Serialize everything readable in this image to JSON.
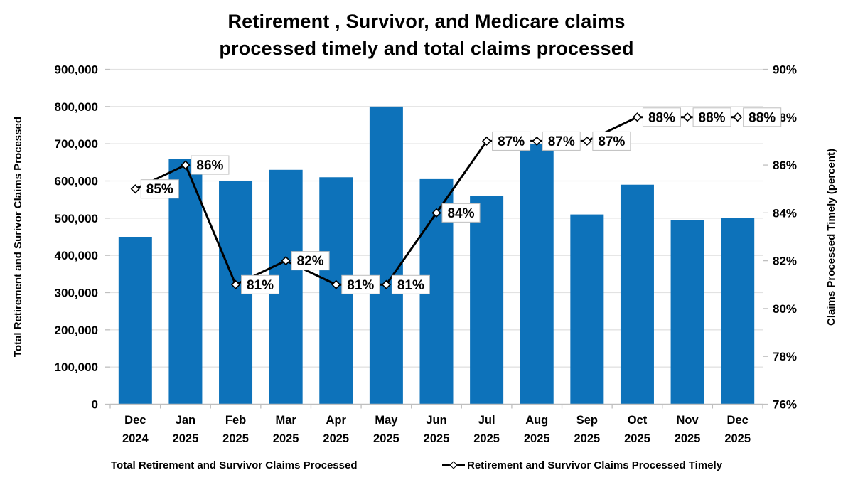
{
  "title": {
    "line1": "Retirement , Survivor, and Medicare claims",
    "line2": "processed timely and total claims processed"
  },
  "colors": {
    "bar": "#0D72BA",
    "line": "#000000",
    "grid": "#E2E2E2",
    "axis": "#BFBFBF",
    "label_box_border": "#BFBFBF",
    "label_box_fill": "#FFFFFF",
    "text": "#000000"
  },
  "chart_data": {
    "type": "combo-bar-line",
    "categories_line1": [
      "Dec",
      "Jan",
      "Feb",
      "Mar",
      "Apr",
      "May",
      "Jun",
      "Jul",
      "Aug",
      "Sep",
      "Oct",
      "Nov",
      "Dec"
    ],
    "categories_line2": [
      "2024",
      "2025",
      "2025",
      "2025",
      "2025",
      "2025",
      "2025",
      "2025",
      "2025",
      "2025",
      "2025",
      "2025",
      "2025"
    ],
    "series": [
      {
        "name": "Total Retirement and Survivor Claims Processed",
        "type": "bar",
        "axis": "left",
        "values": [
          450000,
          660000,
          600000,
          630000,
          610000,
          800000,
          605000,
          560000,
          700000,
          510000,
          590000,
          495000,
          500000
        ]
      },
      {
        "name": "Retirement and Survivor Claims Processed Timely",
        "type": "line",
        "axis": "right",
        "values": [
          85,
          86,
          81,
          82,
          81,
          81,
          84,
          87,
          87,
          87,
          88,
          88,
          88
        ],
        "data_labels": [
          "85%",
          "86%",
          "81%",
          "82%",
          "81%",
          "81%",
          "84%",
          "87%",
          "87%",
          "87%",
          "88%",
          "88%",
          "88%"
        ]
      }
    ],
    "left_axis": {
      "title": "Total Retirement and Surivor Claims Processed",
      "min": 0,
      "max": 900000,
      "step": 100000,
      "tick_labels": [
        "900,000",
        "800,000",
        "700,000",
        "600,000",
        "500,000",
        "400,000",
        "300,000",
        "200,000",
        "100,000",
        "0"
      ]
    },
    "right_axis": {
      "title": "Claims Processed Timely (percent)",
      "min": 76,
      "max": 90,
      "step": 2,
      "tick_labels": [
        "90%",
        "88%",
        "86%",
        "84%",
        "82%",
        "80%",
        "78%",
        "76%"
      ]
    },
    "legend": [
      {
        "label": "Total Retirement and Survivor Claims Processed",
        "marker": "bar-swatch"
      },
      {
        "label": "Retirement and Survivor Claims Processed Timely",
        "marker": "line-diamond-swatch"
      }
    ],
    "grid": "horizontal",
    "legend_position": "bottom"
  }
}
